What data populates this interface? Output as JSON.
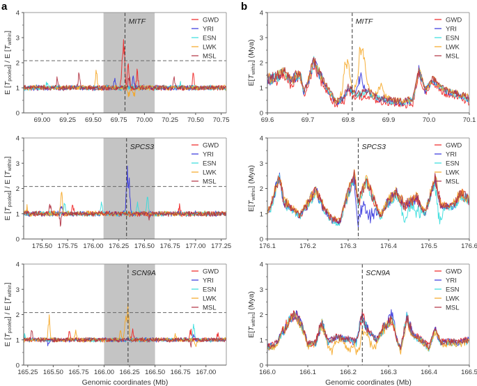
{
  "figure": {
    "panel_letters": [
      "a",
      "b"
    ],
    "x_axis_title": "Genomic coordinates (Mb)"
  },
  "chart_data": [
    {
      "id": "a1",
      "panel": "a",
      "type": "line",
      "gene": "MITF",
      "gene_position": 69.81,
      "shaded_region": [
        69.6,
        70.1
      ],
      "threshold": 2.08,
      "xlim": [
        68.82,
        70.8
      ],
      "ylim": [
        0,
        4
      ],
      "xticks": [
        69.0,
        69.25,
        69.5,
        69.75,
        70.0,
        70.25,
        70.5,
        70.75
      ],
      "xtick_labels": [
        "69.00",
        "69.25",
        "69.50",
        "69.75",
        "70.00",
        "70.25",
        "70.50",
        "70.75"
      ],
      "yticks": [
        0,
        1,
        2,
        3,
        4
      ],
      "ylabel": "E[Tpooled] / E[Twithin]",
      "xlabel": "",
      "baseline": 1.0,
      "noise": 0.06,
      "series": [
        {
          "name": "GWD",
          "color": "#ee2222",
          "peaks": [
            [
              69.8,
              1.75
            ],
            [
              69.84,
              1.05
            ],
            [
              69.93,
              0.75
            ],
            [
              70.48,
              0.6
            ],
            [
              69.78,
              0.9
            ]
          ]
        },
        {
          "name": "YRI",
          "color": "#3333dd",
          "peaks": [
            [
              69.71,
              0.35
            ],
            [
              69.89,
              0.5
            ]
          ]
        },
        {
          "name": "ESN",
          "color": "#33dddd",
          "peaks": [
            [
              69.05,
              0.25
            ],
            [
              70.35,
              0.15
            ]
          ]
        },
        {
          "name": "LWK",
          "color": "#f5a623",
          "peaks": [
            [
              69.53,
              0.6
            ],
            [
              69.85,
              -0.35
            ],
            [
              69.9,
              -0.4
            ]
          ]
        },
        {
          "name": "MSL",
          "color": "#b03040",
          "peaks": [
            [
              69.36,
              0.6
            ],
            [
              69.15,
              0.35
            ],
            [
              69.85,
              0.55
            ],
            [
              70.29,
              0.45
            ]
          ]
        }
      ]
    },
    {
      "id": "b1",
      "panel": "b",
      "type": "line",
      "gene": "MITF",
      "gene_position": 69.81,
      "xlim": [
        69.6,
        70.1
      ],
      "ylim": [
        0,
        4
      ],
      "xticks": [
        69.6,
        69.7,
        69.8,
        69.9,
        70.0,
        70.1
      ],
      "xtick_labels": [
        "69.6",
        "69.7",
        "69.8",
        "69.9",
        "70.0",
        "70.1"
      ],
      "yticks": [
        0,
        1,
        2,
        3,
        4
      ],
      "ylabel": "E[Twithin] (Mya)",
      "xlabel": "",
      "profile": [
        [
          69.6,
          1.3
        ],
        [
          69.62,
          1.4
        ],
        [
          69.64,
          1.6
        ],
        [
          69.66,
          1.25
        ],
        [
          69.68,
          1.6
        ],
        [
          69.69,
          0.8
        ],
        [
          69.7,
          1.2
        ],
        [
          69.715,
          2.05
        ],
        [
          69.73,
          1.5
        ],
        [
          69.75,
          0.9
        ],
        [
          69.77,
          0.4
        ],
        [
          69.79,
          0.6
        ],
        [
          69.8,
          1.0
        ],
        [
          69.82,
          0.7
        ],
        [
          69.85,
          0.8
        ],
        [
          69.87,
          0.6
        ],
        [
          69.9,
          0.5
        ],
        [
          69.93,
          0.4
        ],
        [
          69.96,
          0.5
        ],
        [
          69.975,
          1.7
        ],
        [
          69.99,
          0.9
        ],
        [
          70.01,
          1.3
        ],
        [
          70.03,
          1.0
        ],
        [
          70.05,
          0.8
        ],
        [
          70.08,
          0.7
        ],
        [
          70.1,
          0.55
        ]
      ],
      "series": [
        {
          "name": "GWD",
          "color": "#ee2222",
          "offset": -0.12
        },
        {
          "name": "YRI",
          "color": "#3333dd",
          "offset": 0.0,
          "bumps": [
            [
              69.83,
              0.7
            ]
          ]
        },
        {
          "name": "ESN",
          "color": "#33dddd",
          "offset": 0.0
        },
        {
          "name": "LWK",
          "color": "#f5a623",
          "offset": 0.05,
          "bumps": [
            [
              69.795,
              1.3
            ],
            [
              69.83,
              1.4
            ],
            [
              69.84,
              0.9
            ],
            [
              69.88,
              0.5
            ]
          ]
        },
        {
          "name": "MSL",
          "color": "#b03040",
          "offset": 0.05
        }
      ]
    },
    {
      "id": "a2",
      "panel": "a",
      "type": "line",
      "gene": "SPCS3",
      "gene_position": 176.325,
      "shaded_region": [
        176.1,
        176.6
      ],
      "threshold": 2.08,
      "xlim": [
        175.32,
        177.3
      ],
      "ylim": [
        0,
        4
      ],
      "xticks": [
        175.5,
        175.75,
        176.0,
        176.25,
        176.5,
        176.75,
        177.0,
        177.25
      ],
      "xtick_labels": [
        "175.50",
        "175.75",
        "176.00",
        "176.25",
        "176.50",
        "176.75",
        "177.00",
        "177.25"
      ],
      "yticks": [
        0,
        1,
        2,
        3,
        4
      ],
      "ylabel": "E[Tpooled] / E[Twithin]",
      "xlabel": "",
      "baseline": 1.0,
      "noise": 0.06,
      "series": [
        {
          "name": "GWD",
          "color": "#ee2222",
          "peaks": [
            [
              175.8,
              0.3
            ],
            [
              176.84,
              0.3
            ]
          ]
        },
        {
          "name": "YRI",
          "color": "#3333dd",
          "peaks": [
            [
              176.33,
              1.55
            ],
            [
              176.35,
              1.3
            ],
            [
              175.69,
              0.3
            ]
          ]
        },
        {
          "name": "ESN",
          "color": "#33dddd",
          "peaks": [
            [
              176.43,
              0.5
            ],
            [
              176.53,
              0.75
            ],
            [
              176.08,
              0.5
            ],
            [
              175.72,
              0.45
            ]
          ]
        },
        {
          "name": "LWK",
          "color": "#f5a623",
          "peaks": [
            [
              175.69,
              0.85
            ],
            [
              175.35,
              0.35
            ]
          ]
        },
        {
          "name": "MSL",
          "color": "#b03040",
          "peaks": [
            [
              175.68,
              -0.45
            ],
            [
              175.58,
              0.45
            ],
            [
              176.55,
              -0.2
            ]
          ]
        }
      ]
    },
    {
      "id": "b2",
      "panel": "b",
      "type": "line",
      "gene": "SPCS3",
      "gene_position": 176.325,
      "xlim": [
        176.1,
        176.6
      ],
      "ylim": [
        0,
        4
      ],
      "xticks": [
        176.1,
        176.2,
        176.3,
        176.4,
        176.5,
        176.6
      ],
      "xtick_labels": [
        "176.1",
        "176.2",
        "176.3",
        "176.4",
        "176.5",
        "176.6"
      ],
      "yticks": [
        0,
        1,
        2,
        3,
        4
      ],
      "ylabel": "E[Twithin] (Mya)",
      "xlabel": "",
      "profile": [
        [
          176.1,
          1.0
        ],
        [
          176.11,
          1.4
        ],
        [
          176.13,
          2.5
        ],
        [
          176.14,
          1.5
        ],
        [
          176.16,
          1.2
        ],
        [
          176.18,
          0.9
        ],
        [
          176.2,
          1.4
        ],
        [
          176.22,
          1.9
        ],
        [
          176.24,
          1.2
        ],
        [
          176.26,
          0.75
        ],
        [
          176.28,
          0.7
        ],
        [
          176.3,
          1.8
        ],
        [
          176.315,
          2.55
        ],
        [
          176.325,
          1.4
        ],
        [
          176.345,
          2.3
        ],
        [
          176.36,
          1.7
        ],
        [
          176.38,
          0.9
        ],
        [
          176.4,
          1.5
        ],
        [
          176.42,
          1.8
        ],
        [
          176.44,
          1.3
        ],
        [
          176.47,
          1.6
        ],
        [
          176.49,
          1.0
        ],
        [
          176.515,
          2.4
        ],
        [
          176.53,
          1.3
        ],
        [
          176.56,
          1.3
        ],
        [
          176.58,
          1.8
        ],
        [
          176.6,
          1.5
        ]
      ],
      "series": [
        {
          "name": "GWD",
          "color": "#ee2222",
          "offset": 0.0
        },
        {
          "name": "YRI",
          "color": "#3333dd",
          "offset": 0.0,
          "bumps": [
            [
              176.325,
              -0.9
            ],
            [
              176.345,
              -1.2
            ],
            [
              176.36,
              -0.8
            ]
          ]
        },
        {
          "name": "ESN",
          "color": "#33dddd",
          "offset": -0.05,
          "bumps": [
            [
              176.44,
              -0.5
            ],
            [
              176.47,
              -0.5
            ],
            [
              176.525,
              -0.7
            ]
          ]
        },
        {
          "name": "LWK",
          "color": "#f5a623",
          "offset": 0.05
        },
        {
          "name": "MSL",
          "color": "#b03040",
          "offset": 0.02
        }
      ]
    },
    {
      "id": "a3",
      "panel": "a",
      "type": "line",
      "gene": "SCN9A",
      "gene_position": 166.235,
      "shaded_region": [
        166.0,
        166.5
      ],
      "threshold": 2.08,
      "xlim": [
        165.21,
        167.2
      ],
      "ylim": [
        0,
        4
      ],
      "xticks": [
        165.25,
        165.5,
        165.75,
        166.0,
        166.25,
        166.5,
        166.75,
        167.0
      ],
      "xtick_labels": [
        "165.25",
        "165.50",
        "165.75",
        "166.00",
        "166.25",
        "166.50",
        "166.75",
        "167.00"
      ],
      "yticks": [
        0,
        1,
        2,
        3,
        4
      ],
      "ylabel": "E[Tpooled] / E[Twithin]",
      "xlabel": "Genomic coordinates (Mb)",
      "baseline": 1.0,
      "noise": 0.05,
      "series": [
        {
          "name": "GWD",
          "color": "#ee2222",
          "peaks": [
            [
              166.85,
              0.45
            ],
            [
              167.12,
              0.3
            ],
            [
              165.66,
              0.35
            ],
            [
              166.28,
              0.45
            ]
          ]
        },
        {
          "name": "YRI",
          "color": "#3333dd",
          "peaks": [
            [
              165.45,
              -0.18
            ],
            [
              166.88,
              0.3
            ]
          ]
        },
        {
          "name": "ESN",
          "color": "#33dddd",
          "peaks": [
            [
              166.88,
              0.6
            ],
            [
              165.22,
              0.2
            ]
          ]
        },
        {
          "name": "LWK",
          "color": "#f5a623",
          "peaks": [
            [
              166.235,
              1.5
            ],
            [
              166.21,
              0.9
            ],
            [
              165.46,
              0.85
            ],
            [
              165.72,
              0.35
            ],
            [
              166.16,
              0.35
            ],
            [
              166.7,
              0.25
            ],
            [
              166.9,
              -0.25
            ]
          ]
        },
        {
          "name": "MSL",
          "color": "#b03040",
          "peaks": [
            [
              165.29,
              0.4
            ],
            [
              166.85,
              -0.2
            ]
          ]
        }
      ]
    },
    {
      "id": "b3",
      "panel": "b",
      "type": "line",
      "gene": "SCN9A",
      "gene_position": 166.235,
      "xlim": [
        166.0,
        166.5
      ],
      "ylim": [
        0,
        4
      ],
      "xticks": [
        166.0,
        166.1,
        166.2,
        166.3,
        166.4,
        166.5
      ],
      "xtick_labels": [
        "166.0",
        "166.1",
        "166.2",
        "166.3",
        "166.4",
        "166.5"
      ],
      "yticks": [
        0,
        1,
        2,
        3,
        4
      ],
      "ylabel": "E[Twithin] (Mya)",
      "xlabel": "Genomic coordinates (Mb)",
      "profile": [
        [
          166.0,
          0.7
        ],
        [
          166.02,
          0.8
        ],
        [
          166.04,
          1.4
        ],
        [
          166.06,
          1.9
        ],
        [
          166.07,
          2.0
        ],
        [
          166.09,
          1.4
        ],
        [
          166.1,
          0.8
        ],
        [
          166.12,
          0.9
        ],
        [
          166.135,
          1.7
        ],
        [
          166.15,
          0.9
        ],
        [
          166.17,
          1.1
        ],
        [
          166.2,
          1.0
        ],
        [
          166.22,
          0.9
        ],
        [
          166.235,
          1.95
        ],
        [
          166.25,
          1.3
        ],
        [
          166.27,
          1.0
        ],
        [
          166.29,
          1.5
        ],
        [
          166.31,
          1.8
        ],
        [
          166.32,
          1.0
        ],
        [
          166.33,
          0.6
        ],
        [
          166.345,
          1.9
        ],
        [
          166.36,
          1.2
        ],
        [
          166.38,
          1.0
        ],
        [
          166.4,
          0.7
        ],
        [
          166.415,
          1.4
        ],
        [
          166.43,
          0.9
        ],
        [
          166.46,
          0.9
        ],
        [
          166.48,
          0.9
        ],
        [
          166.5,
          1.0
        ]
      ],
      "series": [
        {
          "name": "GWD",
          "color": "#ee2222",
          "offset": 0.02
        },
        {
          "name": "YRI",
          "color": "#3333dd",
          "offset": 0.0,
          "bumps": [
            [
              166.31,
              0.3
            ]
          ]
        },
        {
          "name": "ESN",
          "color": "#33dddd",
          "offset": -0.03
        },
        {
          "name": "LWK",
          "color": "#f5a623",
          "offset": -0.05,
          "bumps": [
            [
              166.16,
              -0.35
            ],
            [
              166.2,
              -0.45
            ],
            [
              166.23,
              -1.0
            ],
            [
              166.26,
              -0.45
            ]
          ]
        },
        {
          "name": "MSL",
          "color": "#b03040",
          "offset": 0.03
        }
      ]
    }
  ]
}
